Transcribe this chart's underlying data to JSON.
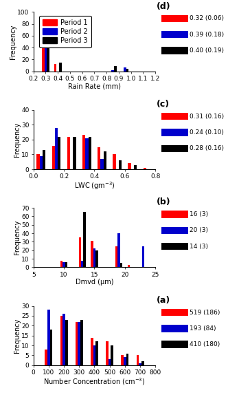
{
  "panel_d": {
    "label": "(d)",
    "xlabel": "Rain Rate (mm)",
    "ylabel": "Frequency",
    "xlim": [
      0.2,
      1.2
    ],
    "ylim": [
      0,
      100
    ],
    "yticks": [
      0,
      20,
      40,
      60,
      80,
      100
    ],
    "xticks": [
      0.2,
      0.3,
      0.4,
      0.5,
      0.6,
      0.7,
      0.8,
      0.9,
      1.0,
      1.1,
      1.2
    ],
    "bin_centers": [
      0.3,
      0.4,
      0.85,
      0.95
    ],
    "bin_width": 0.07,
    "period1": [
      89,
      12,
      0,
      0
    ],
    "period2": [
      76,
      0,
      2,
      6
    ],
    "period3": [
      74,
      15,
      9,
      4
    ],
    "stats": [
      "0.32 (0.06)",
      "0.39 (0.18)",
      "0.40 (0.19)"
    ]
  },
  "panel_c": {
    "label": "(c)",
    "xlabel": "LWC (gm$^{-3}$)",
    "ylabel": "Frequency",
    "xlim": [
      0,
      0.8
    ],
    "ylim": [
      0,
      40
    ],
    "yticks": [
      0,
      10,
      20,
      30,
      40
    ],
    "xticks": [
      0,
      0.2,
      0.4,
      0.6,
      0.8
    ],
    "bin_centers": [
      0.05,
      0.15,
      0.25,
      0.35,
      0.45,
      0.55,
      0.65,
      0.75
    ],
    "bin_width": 0.065,
    "period1": [
      10,
      16,
      22,
      23,
      15,
      10,
      4,
      1
    ],
    "period2": [
      9,
      28,
      0,
      21,
      7,
      0,
      0,
      0
    ],
    "period3": [
      13,
      22,
      22,
      22,
      12,
      6,
      3,
      0
    ],
    "stats": [
      "0.31 (0.16)",
      "0.24 (0.10)",
      "0.28 (0.16)"
    ]
  },
  "panel_b": {
    "label": "(b)",
    "xlabel": "Dmvd (μm)",
    "ylabel": "Frequency",
    "xlim": [
      5,
      25
    ],
    "ylim": [
      0,
      70
    ],
    "yticks": [
      0,
      10,
      20,
      30,
      40,
      50,
      60,
      70
    ],
    "xticks": [
      5,
      10,
      15,
      20,
      25
    ],
    "bin_centers": [
      8,
      10,
      13,
      15,
      19,
      21,
      23
    ],
    "bin_width": 1.3,
    "period1": [
      0,
      8,
      35,
      31,
      25,
      3,
      0
    ],
    "period2": [
      0,
      6,
      8,
      22,
      40,
      0,
      25
    ],
    "period3": [
      0,
      6,
      65,
      20,
      5,
      0,
      0
    ],
    "stats": [
      "16 (3)",
      "20 (3)",
      "14 (3)"
    ]
  },
  "panel_a": {
    "label": "(a)",
    "xlabel": "Number Concentration (cm$^{-3}$)",
    "ylabel": "Frequency",
    "xlim": [
      0,
      800
    ],
    "ylim": [
      0,
      30
    ],
    "yticks": [
      0,
      5,
      10,
      15,
      20,
      25,
      30
    ],
    "xticks": [
      0,
      100,
      200,
      300,
      400,
      500,
      600,
      700,
      800
    ],
    "bin_centers": [
      100,
      200,
      300,
      400,
      500,
      600,
      700
    ],
    "bin_width": 55,
    "period1": [
      8,
      25,
      22,
      14,
      12,
      5,
      5
    ],
    "period2": [
      28,
      26,
      22,
      10,
      3,
      4,
      1
    ],
    "period3": [
      18,
      23,
      23,
      12,
      10,
      6,
      2
    ],
    "stats": [
      "519 (186)",
      "193 (84)",
      "410 (180)"
    ]
  },
  "colors": {
    "period1": "#ff0000",
    "period2": "#0000cc",
    "period3": "#000000"
  },
  "legend_labels": [
    "Period 1",
    "Period 2",
    "Period 3"
  ],
  "figsize": [
    3.48,
    5.77
  ],
  "dpi": 100
}
